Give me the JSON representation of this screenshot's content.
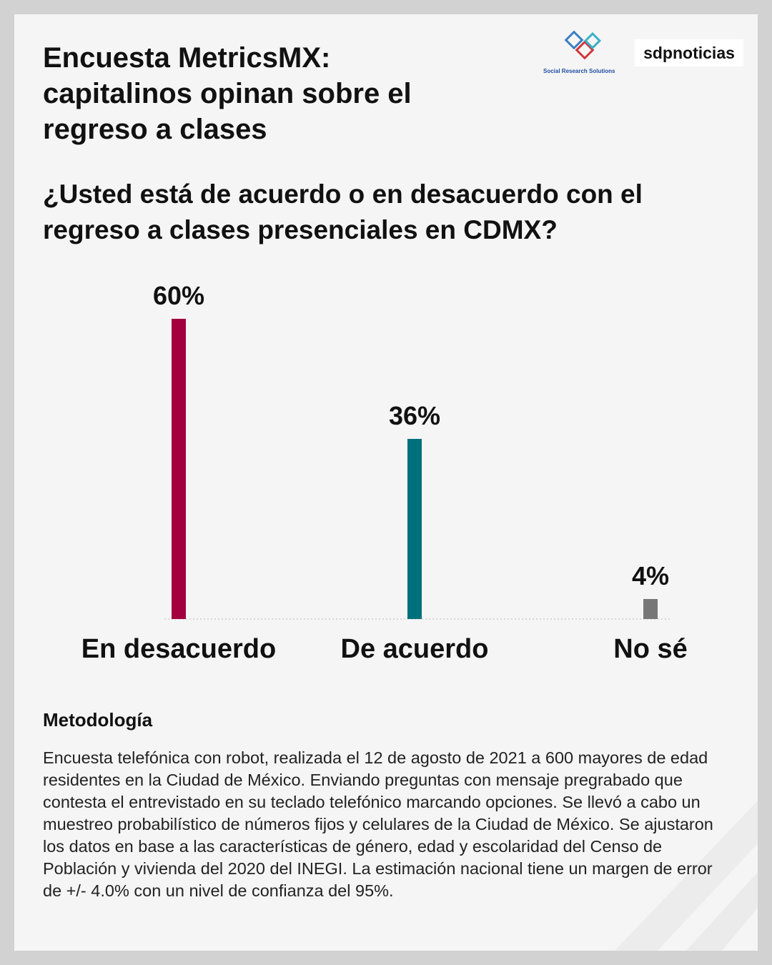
{
  "chart_data": {
    "type": "bar",
    "title": "Encuesta MetricsMX: capitalinos opinan sobre el regreso a clases",
    "subtitle": "¿Usted está de acuerdo o en desacuerdo con el regreso a clases presenciales en CDMX?",
    "categories": [
      "En desacuerdo",
      "De acuerdo",
      "No sé"
    ],
    "values": [
      60,
      36,
      4
    ],
    "value_labels": [
      "60%",
      "36%",
      "4%"
    ],
    "colors": [
      "#a3003f",
      "#00707a",
      "#777777"
    ]
  },
  "brand": {
    "research": "Social Research Solutions",
    "outlet": "sdpnoticias"
  },
  "methodology": {
    "heading": "Metodología",
    "text": "Encuesta telefónica con robot, realizada el 12 de agosto de 2021 a 600 mayores de edad residentes en la Ciudad de México. Enviando preguntas con mensaje pregrabado que contesta el entrevistado en su teclado telefónico marcando opciones. Se llevó a cabo un muestreo probabilístico de números fijos y celulares de la Ciudad de México. Se ajustaron los datos en base a las características de género, edad y escolaridad del Censo de Población y vivienda del 2020 del INEGI. La estimación nacional tiene un margen de error de +/- 4.0% con un nivel de confianza del 95%."
  }
}
